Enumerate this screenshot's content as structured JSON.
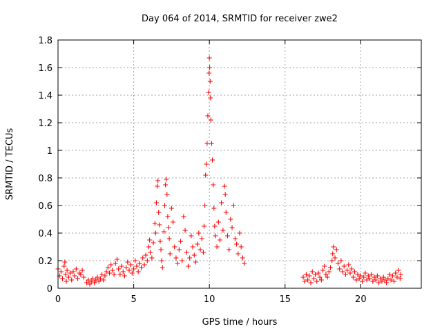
{
  "chart_data": {
    "type": "scatter",
    "title": "Day 064 of 2014, SRMTID for receiver zwe2",
    "xlabel": "GPS time / hours",
    "ylabel": "SRMTID / TECUs",
    "xlim": [
      0,
      24
    ],
    "ylim": [
      0,
      1.8
    ],
    "x_ticks": [
      0,
      5,
      10,
      15,
      20
    ],
    "x_tick_labels": [
      "0",
      "5",
      "10",
      "15",
      "20"
    ],
    "y_ticks": [
      0,
      0.2,
      0.4,
      0.6,
      0.8,
      1.0,
      1.2,
      1.4,
      1.6,
      1.8
    ],
    "y_tick_labels": [
      "0",
      "0.2",
      "0.4",
      "0.6",
      "0.8",
      "1",
      "1.2",
      "1.4",
      "1.6",
      "1.8"
    ],
    "grid": true,
    "marker": "plus",
    "series": [
      {
        "name": "SRMTID",
        "color": "#ff0000",
        "points": [
          [
            0.0,
            0.14
          ],
          [
            0.1,
            0.09
          ],
          [
            0.2,
            0.12
          ],
          [
            0.3,
            0.07
          ],
          [
            0.4,
            0.16
          ],
          [
            0.45,
            0.19
          ],
          [
            0.5,
            0.1
          ],
          [
            0.55,
            0.05
          ],
          [
            0.6,
            0.13
          ],
          [
            0.7,
            0.08
          ],
          [
            0.8,
            0.11
          ],
          [
            0.9,
            0.06
          ],
          [
            1.0,
            0.12
          ],
          [
            1.1,
            0.09
          ],
          [
            1.2,
            0.14
          ],
          [
            1.3,
            0.07
          ],
          [
            1.4,
            0.11
          ],
          [
            1.5,
            0.1
          ],
          [
            1.6,
            0.13
          ],
          [
            1.7,
            0.08
          ],
          [
            1.9,
            0.04
          ],
          [
            2.0,
            0.06
          ],
          [
            2.1,
            0.03
          ],
          [
            2.2,
            0.05
          ],
          [
            2.3,
            0.07
          ],
          [
            2.4,
            0.04
          ],
          [
            2.5,
            0.06
          ],
          [
            2.6,
            0.08
          ],
          [
            2.7,
            0.05
          ],
          [
            2.8,
            0.07
          ],
          [
            2.9,
            0.1
          ],
          [
            3.0,
            0.06
          ],
          [
            3.1,
            0.09
          ],
          [
            3.2,
            0.12
          ],
          [
            3.3,
            0.15
          ],
          [
            3.4,
            0.11
          ],
          [
            3.5,
            0.17
          ],
          [
            3.6,
            0.13
          ],
          [
            3.7,
            0.1
          ],
          [
            3.8,
            0.18
          ],
          [
            3.9,
            0.21
          ],
          [
            4.0,
            0.14
          ],
          [
            4.1,
            0.1
          ],
          [
            4.2,
            0.16
          ],
          [
            4.3,
            0.12
          ],
          [
            4.4,
            0.09
          ],
          [
            4.5,
            0.15
          ],
          [
            4.6,
            0.19
          ],
          [
            4.7,
            0.13
          ],
          [
            4.8,
            0.17
          ],
          [
            4.9,
            0.11
          ],
          [
            5.0,
            0.14
          ],
          [
            5.1,
            0.2
          ],
          [
            5.2,
            0.16
          ],
          [
            5.3,
            0.12
          ],
          [
            5.4,
            0.18
          ],
          [
            5.5,
            0.15
          ],
          [
            5.6,
            0.22
          ],
          [
            5.7,
            0.17
          ],
          [
            5.8,
            0.24
          ],
          [
            5.9,
            0.2
          ],
          [
            6.0,
            0.3
          ],
          [
            6.05,
            0.35
          ],
          [
            6.1,
            0.26
          ],
          [
            6.2,
            0.22
          ],
          [
            6.3,
            0.33
          ],
          [
            6.4,
            0.47
          ],
          [
            6.45,
            0.4
          ],
          [
            6.5,
            0.62
          ],
          [
            6.55,
            0.74
          ],
          [
            6.6,
            0.78
          ],
          [
            6.65,
            0.55
          ],
          [
            6.7,
            0.46
          ],
          [
            6.75,
            0.34
          ],
          [
            6.8,
            0.28
          ],
          [
            6.85,
            0.2
          ],
          [
            6.9,
            0.15
          ],
          [
            7.0,
            0.41
          ],
          [
            7.05,
            0.6
          ],
          [
            7.1,
            0.75
          ],
          [
            7.15,
            0.79
          ],
          [
            7.2,
            0.68
          ],
          [
            7.25,
            0.52
          ],
          [
            7.3,
            0.44
          ],
          [
            7.35,
            0.36
          ],
          [
            7.4,
            0.25
          ],
          [
            7.5,
            0.58
          ],
          [
            7.6,
            0.48
          ],
          [
            7.7,
            0.3
          ],
          [
            7.8,
            0.22
          ],
          [
            7.9,
            0.18
          ],
          [
            8.0,
            0.28
          ],
          [
            8.1,
            0.34
          ],
          [
            8.2,
            0.2
          ],
          [
            8.3,
            0.52
          ],
          [
            8.4,
            0.42
          ],
          [
            8.5,
            0.26
          ],
          [
            8.6,
            0.16
          ],
          [
            8.7,
            0.22
          ],
          [
            8.8,
            0.38
          ],
          [
            8.9,
            0.3
          ],
          [
            9.0,
            0.24
          ],
          [
            9.1,
            0.19
          ],
          [
            9.2,
            0.32
          ],
          [
            9.3,
            0.4
          ],
          [
            9.4,
            0.28
          ],
          [
            9.5,
            0.36
          ],
          [
            9.6,
            0.26
          ],
          [
            9.65,
            0.45
          ],
          [
            9.7,
            0.6
          ],
          [
            9.75,
            0.82
          ],
          [
            9.8,
            0.9
          ],
          [
            9.85,
            1.05
          ],
          [
            9.9,
            1.25
          ],
          [
            9.95,
            1.42
          ],
          [
            9.98,
            1.56
          ],
          [
            10.0,
            1.67
          ],
          [
            10.02,
            1.6
          ],
          [
            10.05,
            1.5
          ],
          [
            10.08,
            1.38
          ],
          [
            10.1,
            1.22
          ],
          [
            10.15,
            1.05
          ],
          [
            10.2,
            0.93
          ],
          [
            10.25,
            0.75
          ],
          [
            10.3,
            0.58
          ],
          [
            10.35,
            0.45
          ],
          [
            10.4,
            0.38
          ],
          [
            10.5,
            0.3
          ],
          [
            10.6,
            0.48
          ],
          [
            10.7,
            0.35
          ],
          [
            10.8,
            0.62
          ],
          [
            10.9,
            0.42
          ],
          [
            11.0,
            0.74
          ],
          [
            11.05,
            0.68
          ],
          [
            11.1,
            0.55
          ],
          [
            11.2,
            0.38
          ],
          [
            11.3,
            0.28
          ],
          [
            11.4,
            0.5
          ],
          [
            11.5,
            0.44
          ],
          [
            11.6,
            0.6
          ],
          [
            11.7,
            0.36
          ],
          [
            11.8,
            0.32
          ],
          [
            11.9,
            0.25
          ],
          [
            12.0,
            0.4
          ],
          [
            12.1,
            0.3
          ],
          [
            12.2,
            0.22
          ],
          [
            12.3,
            0.18
          ],
          [
            16.2,
            0.08
          ],
          [
            16.3,
            0.05
          ],
          [
            16.4,
            0.1
          ],
          [
            16.5,
            0.06
          ],
          [
            16.6,
            0.09
          ],
          [
            16.7,
            0.04
          ],
          [
            16.8,
            0.12
          ],
          [
            16.9,
            0.07
          ],
          [
            17.0,
            0.1
          ],
          [
            17.1,
            0.05
          ],
          [
            17.2,
            0.11
          ],
          [
            17.3,
            0.08
          ],
          [
            17.4,
            0.06
          ],
          [
            17.5,
            0.13
          ],
          [
            17.6,
            0.16
          ],
          [
            17.7,
            0.1
          ],
          [
            17.8,
            0.08
          ],
          [
            17.9,
            0.12
          ],
          [
            18.0,
            0.15
          ],
          [
            18.1,
            0.2
          ],
          [
            18.15,
            0.25
          ],
          [
            18.2,
            0.3
          ],
          [
            18.3,
            0.22
          ],
          [
            18.4,
            0.28
          ],
          [
            18.5,
            0.18
          ],
          [
            18.6,
            0.14
          ],
          [
            18.7,
            0.2
          ],
          [
            18.8,
            0.12
          ],
          [
            18.9,
            0.16
          ],
          [
            19.0,
            0.1
          ],
          [
            19.1,
            0.13
          ],
          [
            19.2,
            0.17
          ],
          [
            19.3,
            0.11
          ],
          [
            19.4,
            0.14
          ],
          [
            19.5,
            0.08
          ],
          [
            19.6,
            0.12
          ],
          [
            19.7,
            0.06
          ],
          [
            19.8,
            0.1
          ],
          [
            19.9,
            0.07
          ],
          [
            20.0,
            0.09
          ],
          [
            20.1,
            0.05
          ],
          [
            20.2,
            0.08
          ],
          [
            20.3,
            0.11
          ],
          [
            20.4,
            0.06
          ],
          [
            20.5,
            0.09
          ],
          [
            20.6,
            0.07
          ],
          [
            20.7,
            0.1
          ],
          [
            20.8,
            0.05
          ],
          [
            20.9,
            0.08
          ],
          [
            21.0,
            0.06
          ],
          [
            21.1,
            0.09
          ],
          [
            21.2,
            0.04
          ],
          [
            21.3,
            0.07
          ],
          [
            21.4,
            0.05
          ],
          [
            21.5,
            0.08
          ],
          [
            21.6,
            0.06
          ],
          [
            21.7,
            0.04
          ],
          [
            21.8,
            0.07
          ],
          [
            21.9,
            0.1
          ],
          [
            22.0,
            0.06
          ],
          [
            22.1,
            0.09
          ],
          [
            22.2,
            0.05
          ],
          [
            22.3,
            0.11
          ],
          [
            22.4,
            0.08
          ],
          [
            22.5,
            0.13
          ],
          [
            22.6,
            0.07
          ],
          [
            22.65,
            0.1
          ]
        ]
      }
    ]
  }
}
